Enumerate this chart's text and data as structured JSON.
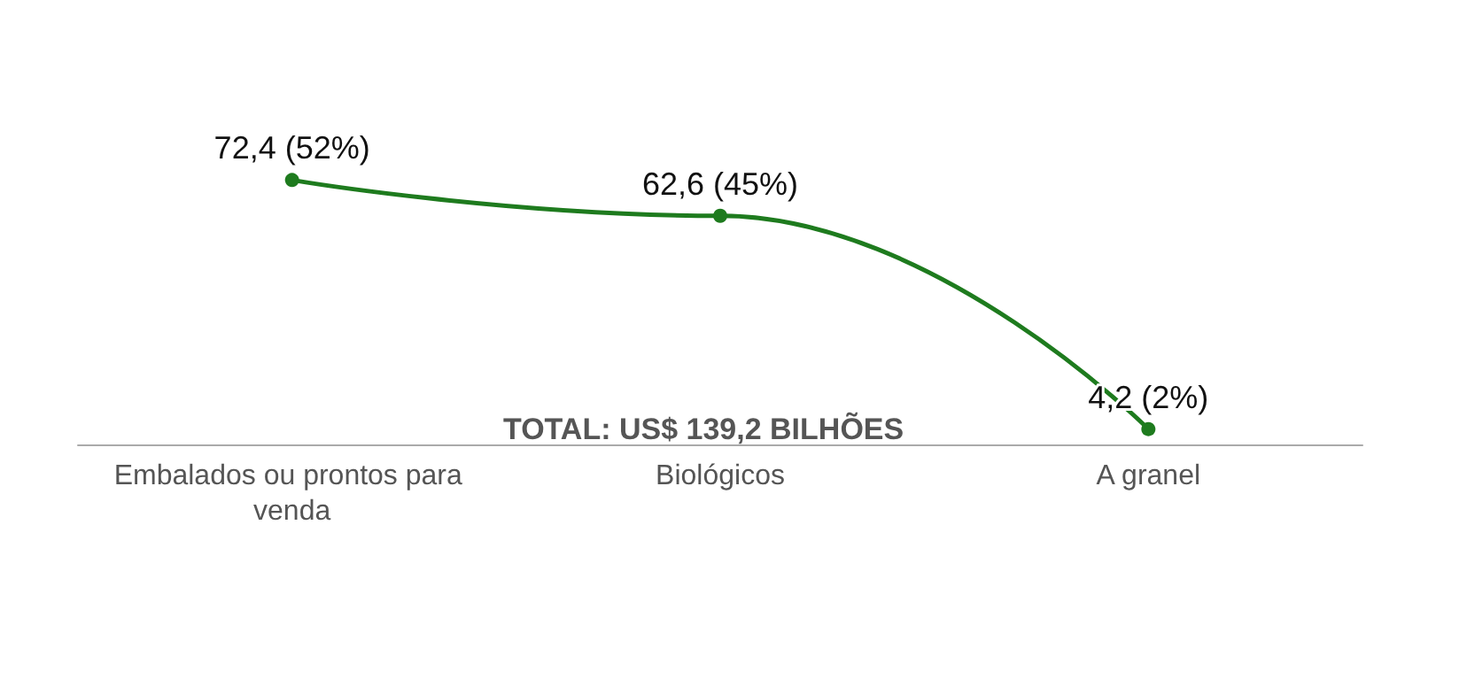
{
  "chart_data": {
    "type": "line",
    "categories": [
      "Embalados ou prontos para venda",
      "Biológicos",
      "A granel"
    ],
    "series": [
      {
        "color": "#1e7b1e",
        "values": [
          72.4,
          62.6,
          4.2
        ],
        "value_labels": [
          "72,4 (52%)",
          "62,6 (45%)",
          "4,2 (2%)"
        ]
      }
    ],
    "annotations": [
      "TOTAL: US$ 139,2 BILHÕES"
    ],
    "marker": "circle",
    "line_style": "solid"
  }
}
